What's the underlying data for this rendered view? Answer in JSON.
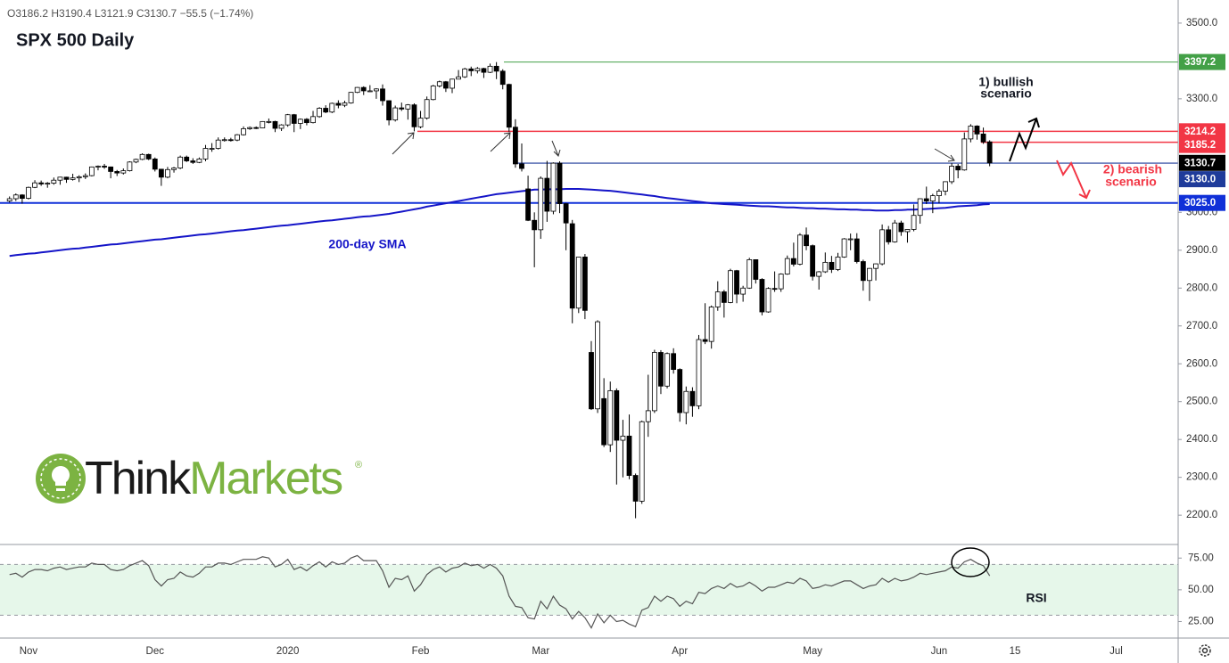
{
  "chart_data": {
    "type": "candlestick",
    "title": "SPX 500 Daily",
    "header": [
      "O3186.2",
      "H3190.4",
      "L3121.9",
      "C3130.7",
      "−55.5 (−1.74%)"
    ],
    "categories": [
      null,
      null,
      null,
      "Nov",
      null,
      null,
      null,
      null,
      null,
      null,
      null,
      null,
      null,
      null,
      null,
      null,
      null,
      null,
      null,
      null,
      null,
      null,
      null,
      "Dec",
      null,
      null,
      null,
      null,
      null,
      null,
      null,
      null,
      null,
      null,
      null,
      null,
      null,
      null,
      null,
      null,
      null,
      null,
      null,
      null,
      "2020",
      null,
      null,
      null,
      null,
      null,
      null,
      null,
      null,
      null,
      null,
      null,
      null,
      null,
      null,
      null,
      null,
      null,
      null,
      null,
      null,
      "Feb",
      null,
      null,
      null,
      null,
      null,
      null,
      null,
      null,
      null,
      null,
      null,
      null,
      null,
      null,
      null,
      null,
      null,
      null,
      "Mar",
      null,
      null,
      null,
      null,
      null,
      null,
      null,
      null,
      null,
      null,
      null,
      null,
      null,
      null,
      null,
      null,
      null,
      null,
      null,
      null,
      null,
      "Apr",
      null,
      null,
      null,
      null,
      null,
      null,
      null,
      null,
      null,
      null,
      null,
      null,
      null,
      null,
      null,
      null,
      null,
      null,
      null,
      null,
      "May",
      null,
      null,
      null,
      null,
      null,
      null,
      null,
      null,
      null,
      null,
      null,
      null,
      null,
      null,
      null,
      null,
      null,
      null,
      null,
      "Jun",
      null,
      null,
      null,
      null,
      null,
      null,
      null,
      null,
      null,
      null,
      null,
      "15",
      null,
      null,
      null,
      null,
      null,
      null,
      null,
      null,
      null,
      null,
      null,
      null,
      null,
      null,
      null,
      "Jul",
      null,
      null,
      null,
      null,
      null,
      null,
      null,
      null,
      null
    ],
    "open": [
      3030,
      3036,
      3046,
      3037,
      3066,
      3078,
      3075,
      3077,
      3085,
      3093,
      3087,
      3091,
      3094,
      3097,
      3120,
      3122,
      3120,
      3108,
      3104,
      3110,
      3133,
      3140,
      3153,
      3141,
      3114,
      3093,
      3113,
      3117,
      3146,
      3136,
      3132,
      3141,
      3169,
      3169,
      3191,
      3192,
      3191,
      3205,
      3221,
      3224,
      3223,
      3240,
      3240,
      3222,
      3231,
      3258,
      3235,
      3246,
      3237,
      3253,
      3275,
      3265,
      3288,
      3283,
      3289,
      3317,
      3330,
      3321,
      3321,
      3326,
      3295,
      3244,
      3276,
      3273,
      3284,
      3226,
      3249,
      3298,
      3334,
      3345,
      3328,
      3352,
      3358,
      3379,
      3374,
      3380,
      3370,
      3386,
      3373,
      3338,
      3225,
      3128,
      3062,
      2979,
      2954,
      3090,
      3003,
      3130,
      3023,
      2970,
      2747,
      2882,
      2630,
      2481,
      2508,
      2386,
      2529,
      2398,
      2409,
      2305,
      2237,
      2447,
      2476,
      2630,
      2541,
      2627,
      2585,
      2471,
      2527,
      2489,
      2664,
      2659,
      2750,
      2790,
      2762,
      2846,
      2784,
      2800,
      2875,
      2823,
      2737,
      2799,
      2798,
      2837,
      2878,
      2863,
      2940,
      2912,
      2831,
      2843,
      2868,
      2849,
      2882,
      2930,
      2930,
      2870,
      2820,
      2852,
      2864,
      2954,
      2922,
      2972,
      2949,
      2955,
      2992,
      3036,
      3030,
      3044,
      3056,
      3081,
      3122,
      3112,
      3194,
      3228,
      3207,
      3186.2,
      null,
      null,
      null,
      null,
      null,
      null,
      null,
      null,
      null,
      null,
      null,
      null,
      null,
      null,
      null,
      null,
      null,
      null,
      null,
      null,
      null,
      null,
      null,
      null,
      null,
      null,
      null,
      null,
      null
    ],
    "high": [
      3042,
      3050,
      3048,
      3068,
      3085,
      3084,
      3080,
      3092,
      3094,
      3094,
      3102,
      3098,
      3103,
      3121,
      3124,
      3128,
      3121,
      3112,
      3116,
      3135,
      3142,
      3156,
      3155,
      3145,
      3115,
      3120,
      3120,
      3150,
      3150,
      3143,
      3145,
      3178,
      3183,
      3198,
      3198,
      3197,
      3207,
      3227,
      3227,
      3227,
      3241,
      3248,
      3242,
      3233,
      3260,
      3260,
      3248,
      3249,
      3268,
      3278,
      3283,
      3290,
      3296,
      3295,
      3318,
      3331,
      3333,
      3336,
      3328,
      3338,
      3296,
      3282,
      3290,
      3286,
      3288,
      3268,
      3306,
      3337,
      3348,
      3347,
      3353,
      3376,
      3382,
      3385,
      3384,
      3382,
      3393,
      3397,
      3378,
      3340,
      3246,
      3182,
      3097,
      3000,
      3095,
      3136,
      3132,
      3135,
      3025,
      2980,
      2883,
      2890,
      2660,
      2715,
      2562,
      2553,
      2535,
      2452,
      2466,
      2310,
      2450,
      2571,
      2637,
      2636,
      2630,
      2641,
      2588,
      2540,
      2538,
      2676,
      2760,
      2754,
      2818,
      2795,
      2851,
      2848,
      2806,
      2880,
      2876,
      2826,
      2802,
      2844,
      2839,
      2886,
      2920,
      2945,
      2960,
      2915,
      2845,
      2894,
      2885,
      2893,
      2932,
      2944,
      2945,
      2875,
      2853,
      2865,
      2968,
      2964,
      2980,
      2978,
      2956,
      3021,
      3037,
      3068,
      3049,
      3062,
      3082,
      3130,
      3128,
      3211,
      3233,
      3230,
      3224,
      3190.4,
      null,
      null,
      null,
      null,
      null,
      null,
      null,
      null,
      null,
      null,
      null,
      null,
      null,
      null,
      null,
      null,
      null,
      null,
      null,
      null,
      null,
      null,
      null,
      null,
      null,
      null,
      null,
      null,
      null
    ],
    "low": [
      3026,
      3030,
      3023,
      3034,
      3064,
      3070,
      3065,
      3073,
      3073,
      3078,
      3084,
      3080,
      3088,
      3095,
      3111,
      3115,
      3090,
      3096,
      3100,
      3108,
      3130,
      3138,
      3138,
      3108,
      3070,
      3090,
      3105,
      3114,
      3133,
      3128,
      3130,
      3135,
      3160,
      3166,
      3187,
      3187,
      3188,
      3203,
      3218,
      3220,
      3222,
      3235,
      3212,
      3215,
      3226,
      3212,
      3220,
      3230,
      3235,
      3250,
      3262,
      3262,
      3275,
      3278,
      3287,
      3315,
      3310,
      3318,
      3300,
      3282,
      3230,
      3240,
      3268,
      3245,
      3214,
      3222,
      3245,
      3296,
      3330,
      3318,
      3315,
      3352,
      3355,
      3360,
      3367,
      3355,
      3368,
      3352,
      3325,
      3213,
      3118,
      3108,
      2977,
      2855,
      2930,
      2975,
      2995,
      2998,
      2900,
      2707,
      2734,
      2718,
      2478,
      2470,
      2380,
      2367,
      2281,
      2300,
      2295,
      2192,
      2230,
      2407,
      2470,
      2520,
      2535,
      2574,
      2447,
      2440,
      2460,
      2480,
      2652,
      2640,
      2740,
      2722,
      2760,
      2760,
      2764,
      2798,
      2812,
      2728,
      2735,
      2790,
      2790,
      2835,
      2857,
      2860,
      2900,
      2820,
      2796,
      2840,
      2840,
      2845,
      2880,
      2900,
      2865,
      2793,
      2766,
      2820,
      2860,
      2915,
      2920,
      2938,
      2920,
      2950,
      2970,
      3022,
      2998,
      3024,
      3045,
      3075,
      3090,
      3110,
      3185,
      3192,
      3181,
      3121.9,
      null,
      null,
      null,
      null,
      null,
      null,
      null,
      null,
      null,
      null,
      null,
      null,
      null,
      null,
      null,
      null,
      null,
      null,
      null,
      null,
      null,
      null,
      null,
      null,
      null,
      null,
      null,
      null,
      null
    ],
    "close": [
      3036,
      3046,
      3037,
      3066,
      3078,
      3075,
      3077,
      3085,
      3093,
      3087,
      3091,
      3094,
      3097,
      3120,
      3122,
      3120,
      3108,
      3104,
      3110,
      3133,
      3140,
      3153,
      3141,
      3114,
      3093,
      3113,
      3117,
      3146,
      3136,
      3132,
      3141,
      3169,
      3169,
      3191,
      3192,
      3191,
      3205,
      3221,
      3224,
      3223,
      3240,
      3240,
      3222,
      3231,
      3258,
      3235,
      3246,
      3237,
      3253,
      3275,
      3265,
      3288,
      3283,
      3289,
      3317,
      3330,
      3321,
      3321,
      3326,
      3295,
      3244,
      3276,
      3273,
      3284,
      3226,
      3249,
      3298,
      3334,
      3345,
      3328,
      3352,
      3358,
      3379,
      3374,
      3380,
      3370,
      3386,
      3373,
      3338,
      3225,
      3128,
      3116,
      2979,
      2954,
      3090,
      3003,
      3130,
      3023,
      2972,
      2747,
      2882,
      2741,
      2481,
      2711,
      2386,
      2529,
      2398,
      2409,
      2305,
      2237,
      2447,
      2476,
      2630,
      2541,
      2627,
      2585,
      2471,
      2527,
      2489,
      2664,
      2659,
      2750,
      2790,
      2762,
      2846,
      2784,
      2800,
      2875,
      2823,
      2737,
      2799,
      2798,
      2837,
      2878,
      2863,
      2940,
      2912,
      2831,
      2843,
      2868,
      2849,
      2882,
      2930,
      2930,
      2870,
      2820,
      2852,
      2864,
      2954,
      2922,
      2972,
      2949,
      2955,
      2992,
      3036,
      3030,
      3044,
      3056,
      3081,
      3122,
      3112,
      3194,
      3228,
      3207,
      3186,
      3130.7,
      null,
      null,
      null,
      null,
      null,
      null,
      null,
      null,
      null,
      null,
      null,
      null,
      null,
      null,
      null,
      null,
      null,
      null,
      null,
      null,
      null,
      null,
      null,
      null,
      null,
      null,
      null,
      null,
      null
    ],
    "up_color": "#ffffff",
    "down_color": "#000000",
    "wick_color": "#000000",
    "ylim": [
      2125,
      3561
    ],
    "yticks": [
      {
        "value": 3500,
        "label": "3500.0"
      },
      {
        "value": 3300,
        "label": "3300.0"
      },
      {
        "value": 3000,
        "label": "3000.0"
      },
      {
        "value": 2900,
        "label": "2900.0"
      },
      {
        "value": 2800,
        "label": "2800.0"
      },
      {
        "value": 2700,
        "label": "2700.0"
      },
      {
        "value": 2600,
        "label": "2600.0"
      },
      {
        "value": 2500,
        "label": "2500.0"
      },
      {
        "value": 2400,
        "label": "2400.0"
      },
      {
        "value": 2300,
        "label": "2300.0"
      },
      {
        "value": 2200,
        "label": "2200.0"
      }
    ],
    "sma": {
      "name": "200-day SMA",
      "color": "#1515c8",
      "values": [
        2885,
        2887,
        2889,
        2891,
        2892,
        2894,
        2896,
        2898,
        2900,
        2902,
        2904,
        2905,
        2907,
        2909,
        2911,
        2913,
        2915,
        2916,
        2918,
        2920,
        2922,
        2924,
        2926,
        2928,
        2929,
        2931,
        2933,
        2935,
        2937,
        2939,
        2941,
        2942,
        2944,
        2946,
        2948,
        2950,
        2952,
        2953,
        2955,
        2957,
        2959,
        2961,
        2963,
        2965,
        2966,
        2968,
        2970,
        2972,
        2974,
        2976,
        2978,
        2979,
        2981,
        2983,
        2985,
        2987,
        2989,
        2990,
        2992,
        2994,
        2996,
        2999,
        3002,
        3005,
        3008,
        3011,
        3015,
        3018,
        3021,
        3024,
        3027,
        3030,
        3033,
        3036,
        3039,
        3042,
        3045,
        3048,
        3050,
        3052,
        3054,
        3056,
        3058,
        3060,
        3060,
        3061,
        3061,
        3061,
        3062,
        3062,
        3062,
        3061,
        3060,
        3059,
        3058,
        3057,
        3055,
        3053,
        3051,
        3049,
        3047,
        3045,
        3043,
        3040,
        3038,
        3036,
        3034,
        3032,
        3030,
        3028,
        3026,
        3024,
        3023,
        3022,
        3021,
        3020,
        3019,
        3018,
        3017,
        3016,
        3016,
        3015,
        3014,
        3013,
        3013,
        3012,
        3011,
        3011,
        3010,
        3010,
        3009,
        3008,
        3008,
        3007,
        3007,
        3006,
        3006,
        3005,
        3005,
        3005,
        3006,
        3006,
        3007,
        3007,
        3008,
        3009,
        3010,
        3011,
        3012,
        3014,
        3016,
        3017,
        3018,
        3019,
        3021,
        3022,
        null,
        null,
        null,
        null,
        null,
        null,
        null,
        null,
        null,
        null,
        null,
        null,
        null,
        null,
        null,
        null,
        null,
        null,
        null,
        null,
        null,
        null,
        null,
        null,
        null,
        null,
        null,
        null,
        null
      ]
    },
    "levels": [
      {
        "value": 3397.2,
        "label": "3397.2",
        "color": "#43a047"
      },
      {
        "value": 3214.2,
        "label": "3214.2",
        "color": "#f23645"
      },
      {
        "value": 3185.2,
        "label": "3185.2",
        "color": "#f23645"
      },
      {
        "value": 3130.7,
        "label": "3130.7",
        "color": "#000000"
      },
      {
        "value": 3130.0,
        "label": "3130.0",
        "color": "#1f3b9a"
      },
      {
        "value": 3025.0,
        "label": "3025.0",
        "color": "#1030d8"
      }
    ],
    "annotations": {
      "bullish": [
        "1) bullish",
        "scenario"
      ],
      "bearish": [
        "2) bearish",
        "scenario"
      ]
    },
    "rsi": {
      "name": "RSI",
      "color": "#555555",
      "band": [
        30,
        70
      ],
      "band_color": "#e6f7ea",
      "ylim": [
        12,
        85
      ],
      "yticks": [
        {
          "value": 75,
          "label": "75.00"
        },
        {
          "value": 50,
          "label": "50.00"
        },
        {
          "value": 25,
          "label": "25.00"
        }
      ],
      "values": [
        62,
        63,
        60,
        64,
        66,
        66,
        65,
        67,
        68,
        66,
        67,
        68,
        68,
        71,
        70,
        70,
        66,
        65,
        66,
        69,
        71,
        73,
        69,
        58,
        53,
        58,
        59,
        64,
        61,
        60,
        63,
        68,
        68,
        71,
        71,
        70,
        72,
        74,
        74,
        74,
        76,
        75,
        68,
        70,
        74,
        66,
        68,
        65,
        69,
        72,
        68,
        72,
        70,
        71,
        75,
        77,
        73,
        73,
        73,
        65,
        52,
        59,
        58,
        61,
        49,
        54,
        62,
        66,
        68,
        64,
        67,
        68,
        71,
        69,
        70,
        67,
        70,
        67,
        61,
        45,
        37,
        36,
        28,
        27,
        41,
        35,
        45,
        38,
        35,
        27,
        33,
        28,
        20,
        31,
        24,
        30,
        25,
        26,
        23,
        21,
        34,
        36,
        45,
        41,
        45,
        43,
        37,
        41,
        39,
        48,
        47,
        51,
        53,
        51,
        55,
        52,
        53,
        56,
        53,
        49,
        52,
        52,
        54,
        56,
        55,
        59,
        57,
        51,
        52,
        54,
        53,
        55,
        57,
        57,
        54,
        51,
        53,
        54,
        59,
        56,
        59,
        57,
        58,
        60,
        63,
        62,
        63,
        64,
        65,
        68,
        67,
        72,
        74,
        71,
        69,
        61,
        null,
        null,
        null,
        null,
        null,
        null,
        null,
        null,
        null,
        null,
        null,
        null,
        null,
        null,
        null,
        null,
        null,
        null,
        null,
        null,
        null,
        null,
        null,
        null,
        null,
        null,
        null,
        null,
        null
      ]
    },
    "logo": {
      "think": "Think",
      "markets": "Markets",
      "mark": "®"
    }
  }
}
